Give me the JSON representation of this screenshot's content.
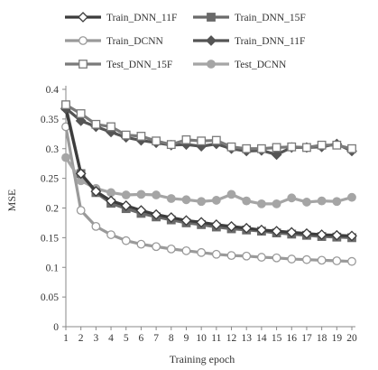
{
  "chart_data": {
    "type": "line",
    "xlabel": "Training epoch",
    "ylabel": "MSE",
    "ylim": [
      0,
      0.4
    ],
    "yticks": [
      "0",
      "0.05",
      "0.1",
      "0.15",
      "0.2",
      "0.25",
      "0.3",
      "0.35",
      "0.4"
    ],
    "x": [
      1,
      2,
      3,
      4,
      5,
      6,
      7,
      8,
      9,
      10,
      11,
      12,
      13,
      14,
      15,
      16,
      17,
      18,
      19,
      20
    ],
    "grid": false,
    "legend_position": "top",
    "series": [
      {
        "name": "Train_DNN_11F",
        "color": "#3c3c3c",
        "marker": "diamond-open",
        "values": [
          0.367,
          0.258,
          0.228,
          0.212,
          0.204,
          0.196,
          0.189,
          0.184,
          0.179,
          0.176,
          0.172,
          0.169,
          0.166,
          0.163,
          0.161,
          0.159,
          0.157,
          0.155,
          0.154,
          0.153
        ]
      },
      {
        "name": "Train_DNN_15F",
        "color": "#6a6a6a",
        "marker": "square-filled",
        "values": [
          0.372,
          0.258,
          0.226,
          0.208,
          0.199,
          0.191,
          0.185,
          0.18,
          0.175,
          0.172,
          0.168,
          0.165,
          0.163,
          0.161,
          0.158,
          0.156,
          0.154,
          0.152,
          0.151,
          0.15
        ]
      },
      {
        "name": "Train_DCNN",
        "color": "#9a9a9a",
        "marker": "circle-open",
        "values": [
          0.337,
          0.196,
          0.169,
          0.155,
          0.145,
          0.139,
          0.135,
          0.131,
          0.128,
          0.125,
          0.122,
          0.12,
          0.119,
          0.117,
          0.116,
          0.114,
          0.113,
          0.112,
          0.111,
          0.11
        ]
      },
      {
        "name": "Train_DNN_11F",
        "color": "#555555",
        "marker": "diamond-filled",
        "values": [
          0.368,
          0.347,
          0.337,
          0.328,
          0.319,
          0.314,
          0.31,
          0.306,
          0.307,
          0.304,
          0.308,
          0.3,
          0.296,
          0.297,
          0.29,
          0.302,
          0.302,
          0.303,
          0.308,
          0.296
        ]
      },
      {
        "name": "Test_DNN_15F",
        "color": "#7a7a7a",
        "marker": "square-open",
        "values": [
          0.374,
          0.359,
          0.341,
          0.337,
          0.323,
          0.321,
          0.313,
          0.307,
          0.315,
          0.313,
          0.314,
          0.303,
          0.3,
          0.3,
          0.302,
          0.303,
          0.302,
          0.306,
          0.306,
          0.3
        ]
      },
      {
        "name": "Test_DCNN",
        "color": "#a5a5a5",
        "marker": "circle-filled",
        "values": [
          0.285,
          0.246,
          0.233,
          0.226,
          0.222,
          0.223,
          0.222,
          0.216,
          0.214,
          0.211,
          0.213,
          0.223,
          0.212,
          0.207,
          0.207,
          0.217,
          0.21,
          0.212,
          0.211,
          0.218
        ]
      }
    ]
  }
}
